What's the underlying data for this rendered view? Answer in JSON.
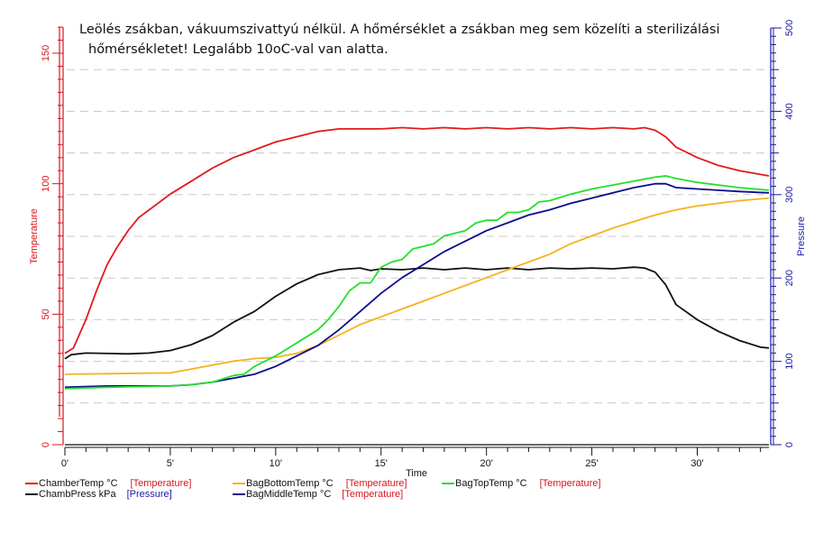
{
  "title": {
    "line1": "Leölés zsákban, vákuumszivattyú nélkül. A hőmérséklet a zsákban meg sem közelíti a sterilizálási",
    "line2": "hőmérsékletet! Legalább 10oC-val van alatta."
  },
  "chart_data": {
    "type": "line",
    "xlabel": "Time",
    "y_left_label": "Temperature",
    "y_right_label": "Pressure",
    "xlim": [
      0,
      33.4
    ],
    "ylim_left": [
      0,
      160
    ],
    "ylim_right": [
      0,
      500
    ],
    "x_ticks": [
      0,
      5,
      10,
      15,
      20,
      25,
      30
    ],
    "x_tick_labels": [
      "0'",
      "5'",
      "10'",
      "15'",
      "20'",
      "25'",
      "30'"
    ],
    "y_left_ticks": [
      0,
      50,
      100,
      150
    ],
    "y_left_tick_labels": [
      "0",
      "50",
      "100",
      "150"
    ],
    "y_right_ticks": [
      0,
      100,
      200,
      300,
      400,
      500
    ],
    "y_right_tick_labels": [
      "0",
      "100",
      "200",
      "300",
      "400",
      "500"
    ],
    "grid": true,
    "legend_position": "bottom",
    "colors": {
      "left_axis": "#d8141c",
      "right_axis": "#1a1aa8",
      "grid": "#c8c8c8"
    },
    "series": [
      {
        "name": "ChamberTemp °C",
        "axis_tag": "[Temperature]",
        "axis": "left",
        "color": "#e31a1c",
        "x": [
          0,
          0.4,
          1,
          1.5,
          2,
          2.5,
          3,
          3.5,
          4,
          5,
          6,
          7,
          8,
          9,
          10,
          11,
          12,
          13,
          14,
          15,
          16,
          17,
          18,
          19,
          20,
          21,
          22,
          23,
          24,
          25,
          26,
          27,
          27.5,
          28,
          28.5,
          29,
          30,
          31,
          32,
          33.4
        ],
        "y": [
          35,
          37,
          48,
          59,
          69,
          76,
          82,
          87,
          90,
          96,
          101,
          106,
          110,
          113,
          116,
          118,
          120,
          121,
          121,
          121,
          121.5,
          121,
          121.5,
          121,
          121.5,
          121,
          121.5,
          121,
          121.5,
          121,
          121.5,
          121,
          121.5,
          120.5,
          118,
          114,
          110,
          107,
          105,
          103
        ]
      },
      {
        "name": "ChambPress kPa",
        "axis_tag": "[Pressure]",
        "axis": "right",
        "color": "#111111",
        "x": [
          0,
          0.3,
          1,
          3,
          4,
          5,
          6,
          7,
          8,
          9,
          10,
          11,
          12,
          13,
          14,
          14.5,
          15,
          16,
          17,
          18,
          19,
          20,
          21,
          22,
          23,
          24,
          25,
          26,
          27,
          27.5,
          28,
          28.5,
          29,
          30,
          31,
          32,
          33,
          33.4
        ],
        "y": [
          103,
          108,
          110,
          109,
          110,
          113,
          120,
          131,
          147,
          160,
          178,
          193,
          204,
          210,
          212,
          209,
          211,
          210,
          212,
          210,
          212,
          210,
          212,
          210,
          212,
          211,
          212,
          211,
          213,
          212,
          207,
          192,
          168,
          150,
          136,
          125,
          117,
          116
        ]
      },
      {
        "name": "BagBottomTemp °C",
        "axis_tag": "[Temperature]",
        "axis": "left",
        "color": "#f5b21c",
        "x": [
          0,
          5,
          6,
          7,
          8,
          9,
          10,
          11,
          12,
          13,
          14,
          15,
          16,
          17,
          18,
          19,
          20,
          21,
          22,
          23,
          24,
          25,
          26,
          27,
          28,
          29,
          30,
          31,
          32,
          33.4
        ],
        "y": [
          27,
          27.5,
          29,
          30.5,
          32,
          33,
          33.5,
          35,
          38,
          42,
          46,
          49,
          52,
          55,
          58,
          61,
          64,
          67,
          70,
          73,
          77,
          80,
          83,
          85.5,
          88,
          90,
          91.5,
          92.5,
          93.5,
          94.5
        ]
      },
      {
        "name": "BagMiddleTemp °C",
        "axis_tag": "[Temperature]",
        "axis": "left",
        "color": "#0b0b8c",
        "x": [
          0,
          2,
          5,
          6,
          7,
          8,
          9,
          10,
          11,
          12,
          13,
          14,
          15,
          16,
          17,
          18,
          19,
          20,
          21,
          22,
          23,
          24,
          25,
          26,
          27,
          28,
          28.5,
          29,
          30,
          31,
          32,
          33.4
        ],
        "y": [
          22,
          22.5,
          22.5,
          23,
          24,
          25.5,
          27,
          30,
          34,
          38,
          44,
          51,
          58,
          64,
          69,
          74,
          78,
          82,
          85,
          88,
          90,
          92.5,
          94.5,
          96.5,
          98.5,
          100,
          100,
          98.5,
          98,
          97.5,
          97,
          96.5
        ]
      },
      {
        "name": "BagTopTemp °C",
        "axis_tag": "[Temperature]",
        "axis": "left",
        "color": "#22e02c",
        "x": [
          0,
          2,
          5,
          6,
          7,
          8,
          8.5,
          9,
          10,
          11,
          12,
          12.5,
          13,
          13.5,
          14,
          14.5,
          15,
          15.5,
          16,
          16.5,
          17,
          17.5,
          18,
          18.5,
          19,
          19.5,
          20,
          20.5,
          21,
          21.5,
          22,
          22.5,
          23,
          24,
          25,
          26,
          27,
          28,
          28.5,
          29,
          30,
          31,
          32,
          33.4
        ],
        "y": [
          21.5,
          22,
          22.5,
          23,
          24,
          26.5,
          27,
          30,
          34,
          39,
          44,
          48,
          53,
          59,
          62,
          62,
          68,
          70,
          71,
          75,
          76,
          77,
          80,
          81,
          82,
          85,
          86,
          86,
          89,
          89,
          90,
          93,
          93.5,
          96,
          98,
          99.5,
          101,
          102.5,
          103,
          102,
          100.5,
          99.5,
          98.5,
          97.5
        ]
      }
    ]
  }
}
